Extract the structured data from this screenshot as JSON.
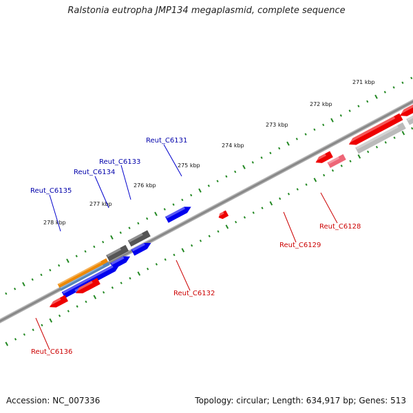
{
  "title": "Ralstonia eutropha JMP134 megaplasmid, complete sequence",
  "footer": {
    "accession": "Accession: NC_007336",
    "summary": "Topology: circular; Length: 634,917 bp; Genes: 513"
  },
  "colors": {
    "forward_gene": "#0000ee",
    "reverse_gene": "#ee0000",
    "pseudo_forward": "#555555",
    "reverse_light": "#ee6677",
    "reverse_grey": "#bbbbbb",
    "orange_feature": "#ee8800",
    "steel_feature": "#5588bb",
    "tick": "#228822",
    "backbone": "#888888"
  },
  "kbp_labels": [
    "271 kbp",
    "272 kbp",
    "273 kbp",
    "274 kbp",
    "275 kbp",
    "276 kbp",
    "277 kbp",
    "278 kbp"
  ],
  "gene_labels": {
    "forward": [
      "Reut_C6131",
      "Reut_C6133",
      "Reut_C6134",
      "Reut_C6135"
    ],
    "reverse": [
      "Reut_C6128",
      "Reut_C6129",
      "Reut_C6132",
      "Reut_C6136"
    ]
  }
}
